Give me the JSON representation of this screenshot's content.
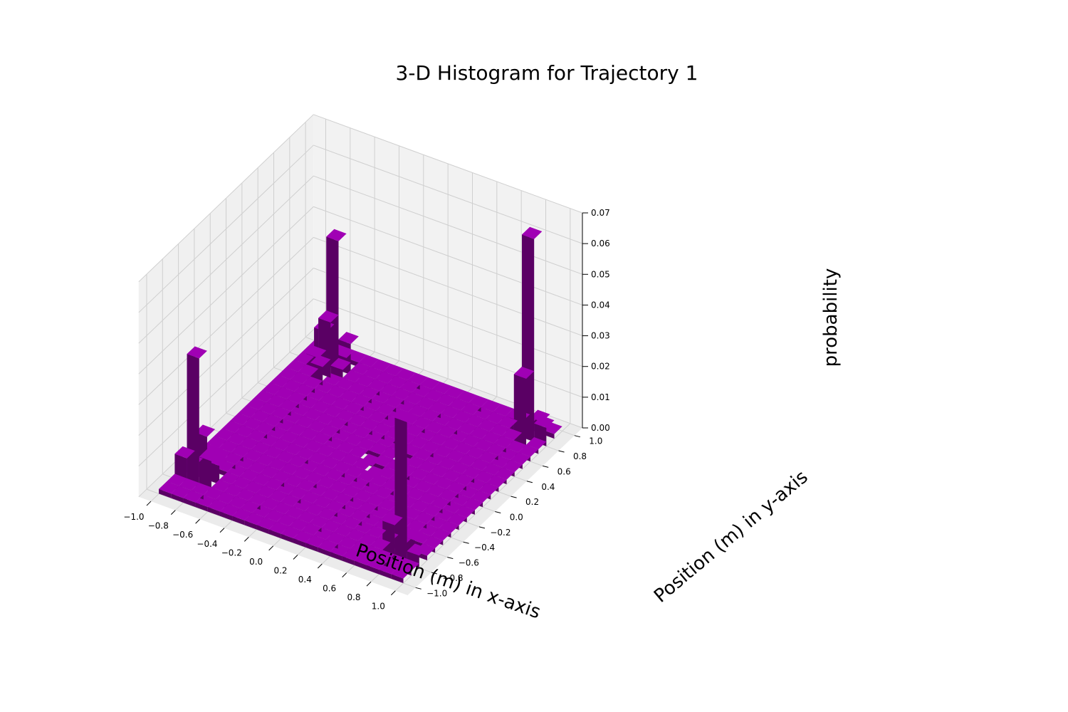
{
  "chart_data": {
    "type": "bar3d",
    "title": "3-D Histogram for Trajectory 1",
    "xlabel": "Position (m) in x-axis",
    "ylabel": "Position (m) in y-axis",
    "zlabel": "probability",
    "xlim": [
      -1.1,
      1.1
    ],
    "ylim": [
      -1.1,
      1.1
    ],
    "zlim": [
      0,
      0.07
    ],
    "x_ticks": [
      "−1.0",
      "−0.8",
      "−0.6",
      "−0.4",
      "−0.2",
      "0.0",
      "0.2",
      "0.4",
      "0.6",
      "0.8",
      "1.0"
    ],
    "y_ticks": [
      "−1.0",
      "−0.8",
      "−0.6",
      "−0.4",
      "−0.2",
      "0.0",
      "0.2",
      "0.4",
      "0.6",
      "0.8",
      "1.0"
    ],
    "z_ticks": [
      "0.00",
      "0.01",
      "0.02",
      "0.03",
      "0.04",
      "0.05",
      "0.06",
      "0.07"
    ],
    "bin_edges_x": [
      -1.0,
      -0.9,
      -0.8,
      -0.7,
      -0.6,
      -0.5,
      -0.4,
      -0.3,
      -0.2,
      -0.1,
      0.0,
      0.1,
      0.2,
      0.3,
      0.4,
      0.5,
      0.6,
      0.7,
      0.8,
      0.9,
      1.0
    ],
    "bin_edges_y": [
      -1.0,
      -0.9,
      -0.8,
      -0.7,
      -0.6,
      -0.5,
      -0.4,
      -0.3,
      -0.2,
      -0.1,
      0.0,
      0.1,
      0.2,
      0.3,
      0.4,
      0.5,
      0.6,
      0.7,
      0.8,
      0.9,
      1.0
    ],
    "default_probability": 0.0015,
    "grid": true,
    "colors": {
      "bar": "#a000b4",
      "bar_top": "#a000b4",
      "bar_side_dark": "#5a0064",
      "bar_side_mid": "#820092",
      "pane_left": "#f0f0f0",
      "pane_back": "#f2f2f2",
      "pane_floor": "#ebebeb",
      "grid": "#cfcfcf"
    },
    "bins": [
      {
        "x": -0.8,
        "y": 0.8,
        "value": 0.042
      },
      {
        "x": -0.8,
        "y": 0.7,
        "value": 0.018
      },
      {
        "x": -0.8,
        "y": 0.6,
        "value": 0.006
      },
      {
        "x": -0.9,
        "y": 0.8,
        "value": 0.011
      },
      {
        "x": -0.7,
        "y": 0.8,
        "value": 0.01
      },
      {
        "x": -0.7,
        "y": 0.7,
        "value": 0.004
      },
      {
        "x": -0.9,
        "y": 0.7,
        "value": 0.005
      },
      {
        "x": 0.8,
        "y": 0.8,
        "value": 0.066
      },
      {
        "x": 0.8,
        "y": 0.7,
        "value": 0.023
      },
      {
        "x": 0.7,
        "y": 0.8,
        "value": 0.005
      },
      {
        "x": 0.9,
        "y": 0.8,
        "value": 0.006
      },
      {
        "x": 0.8,
        "y": 0.9,
        "value": 0.004
      },
      {
        "x": -0.9,
        "y": -0.8,
        "value": 0.042
      },
      {
        "x": -0.9,
        "y": -0.7,
        "value": 0.014
      },
      {
        "x": -0.9,
        "y": -0.6,
        "value": 0.005
      },
      {
        "x": -1.0,
        "y": -0.8,
        "value": 0.008
      },
      {
        "x": -0.8,
        "y": -0.8,
        "value": 0.01
      },
      {
        "x": -0.8,
        "y": -0.7,
        "value": 0.006
      },
      {
        "x": -1.0,
        "y": -0.7,
        "value": 0.003
      },
      {
        "x": 0.8,
        "y": -0.8,
        "value": 0.046
      },
      {
        "x": 0.7,
        "y": -0.8,
        "value": 0.011
      },
      {
        "x": 0.8,
        "y": -0.7,
        "value": 0.005
      },
      {
        "x": 0.9,
        "y": -0.8,
        "value": 0.004
      },
      {
        "x": 0.0,
        "y": 0.0,
        "value": 0.0003
      },
      {
        "x": 0.2,
        "y": 0.1,
        "value": 0.0003
      },
      {
        "x": 0.1,
        "y": -0.1,
        "value": 0.0003
      }
    ]
  }
}
